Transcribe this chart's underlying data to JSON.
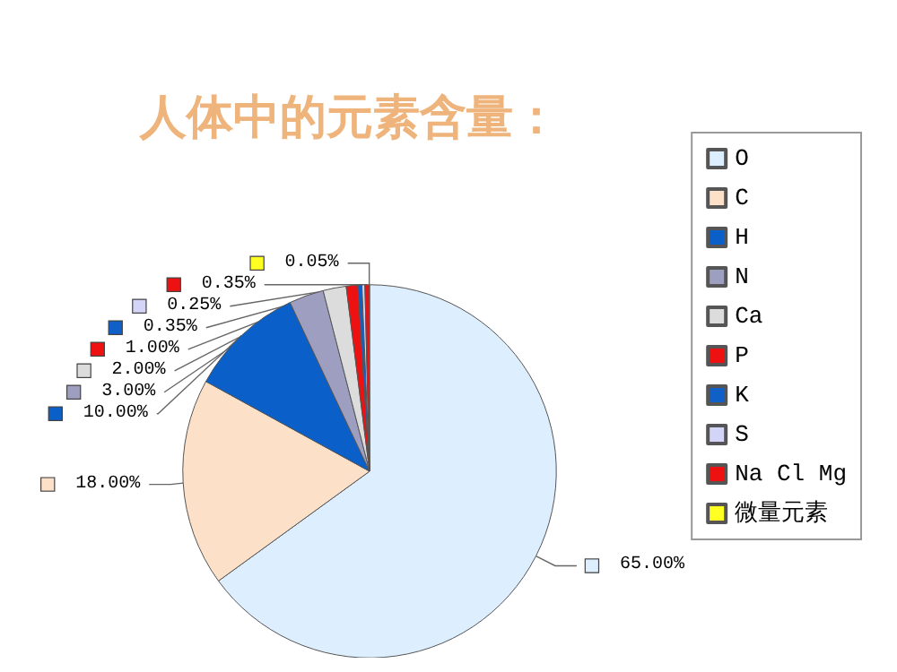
{
  "chart_data": {
    "type": "pie",
    "title": "人体中的元素含量：",
    "categories": [
      "O",
      "C",
      "H",
      "N",
      "Ca",
      "P",
      "K",
      "S",
      "Na Cl Mg",
      "微量元素"
    ],
    "values": [
      65,
      18,
      10,
      3,
      2,
      1,
      0.35,
      0.25,
      0.35,
      0.05
    ],
    "value_labels": [
      "65.00%",
      "18.00%",
      "10.00%",
      "3.00%",
      "2.00%",
      "1.00%",
      "0.35%",
      "0.25%",
      "0.35%",
      "0.05%"
    ],
    "colors": [
      "#ddeeff",
      "#fde0c8",
      "#0a5fc8",
      "#9e9ec0",
      "#dcdcdc",
      "#ee1111",
      "#1060c8",
      "#d4d4f8",
      "#ee1111",
      "#ffff22"
    ],
    "legend": "right"
  }
}
